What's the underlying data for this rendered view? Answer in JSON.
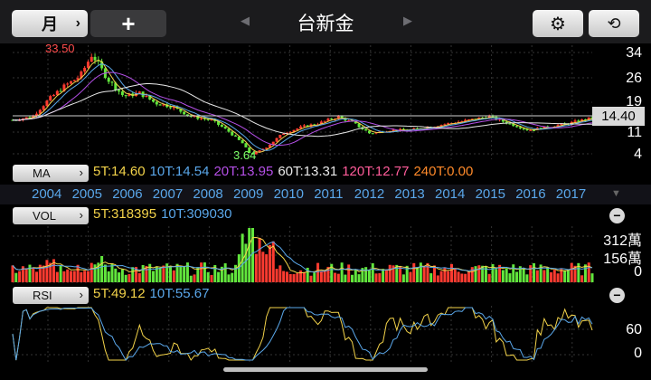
{
  "toolbar": {
    "period_label": "月",
    "period_chevron": "›",
    "add_label": "+",
    "title": "台新金",
    "prev_arrow": "◀",
    "next_arrow": "▶",
    "settings_icon": "⚙",
    "rotate_icon": "⟲"
  },
  "price_axis": {
    "labels": [
      "34",
      "26",
      "19",
      "11",
      "4"
    ]
  },
  "current_price": "14.40",
  "annotations": {
    "high": "33.50",
    "low": "3.64"
  },
  "ma": {
    "button_label": "MA",
    "values": [
      {
        "text": "5T:14.60",
        "color": "#f3d34a"
      },
      {
        "text": "10T:14.54",
        "color": "#5aa7ea"
      },
      {
        "text": "20T:13.95",
        "color": "#b44fe6"
      },
      {
        "text": "60T:13.31",
        "color": "#e9e9e9"
      },
      {
        "text": "120T:12.77",
        "color": "#ff5c9a"
      },
      {
        "text": "240T:0.00",
        "color": "#ff8a2a"
      }
    ]
  },
  "years": [
    "2004",
    "2005",
    "2006",
    "2007",
    "2008",
    "2009",
    "2010",
    "2011",
    "2012",
    "2013",
    "2014",
    "2015",
    "2016",
    "2017"
  ],
  "vol": {
    "button_label": "VOL",
    "values": [
      {
        "text": "5T:318395",
        "color": "#f3d34a"
      },
      {
        "text": "10T:309030",
        "color": "#5aa7ea"
      }
    ],
    "axis": [
      "312萬",
      "156萬",
      "0"
    ]
  },
  "rsi": {
    "button_label": "RSI",
    "values": [
      {
        "text": "5T:49.12",
        "color": "#f3d34a"
      },
      {
        "text": "10T:55.67",
        "color": "#5aa7ea"
      }
    ],
    "axis": [
      "60",
      "0"
    ]
  },
  "chart_data": [
    {
      "type": "candlestick",
      "title": "台新金",
      "x_range": [
        "2003",
        "2017"
      ],
      "y_ticks": [
        34,
        26,
        19,
        11,
        4
      ],
      "ylim": [
        4,
        34
      ],
      "last_price": 14.4,
      "high": {
        "value": 33.5,
        "date": "2005"
      },
      "low": {
        "value": 3.64,
        "date": "2009"
      },
      "series_close": [
        {
          "x": 2003.0,
          "y": 14
        },
        {
          "x": 2003.5,
          "y": 15
        },
        {
          "x": 2003.9,
          "y": 20
        },
        {
          "x": 2004.3,
          "y": 24
        },
        {
          "x": 2004.7,
          "y": 27
        },
        {
          "x": 2005.0,
          "y": 33.5
        },
        {
          "x": 2005.4,
          "y": 26
        },
        {
          "x": 2005.8,
          "y": 21
        },
        {
          "x": 2006.2,
          "y": 22
        },
        {
          "x": 2006.6,
          "y": 19
        },
        {
          "x": 2007.0,
          "y": 18
        },
        {
          "x": 2007.5,
          "y": 15
        },
        {
          "x": 2008.0,
          "y": 14
        },
        {
          "x": 2008.4,
          "y": 11
        },
        {
          "x": 2008.8,
          "y": 7
        },
        {
          "x": 2009.0,
          "y": 3.64
        },
        {
          "x": 2009.4,
          "y": 6
        },
        {
          "x": 2009.8,
          "y": 10
        },
        {
          "x": 2010.3,
          "y": 12
        },
        {
          "x": 2010.7,
          "y": 13
        },
        {
          "x": 2011.2,
          "y": 15
        },
        {
          "x": 2011.6,
          "y": 13
        },
        {
          "x": 2012.0,
          "y": 10
        },
        {
          "x": 2012.5,
          "y": 11
        },
        {
          "x": 2013.0,
          "y": 11
        },
        {
          "x": 2013.5,
          "y": 12
        },
        {
          "x": 2014.0,
          "y": 13
        },
        {
          "x": 2014.5,
          "y": 14
        },
        {
          "x": 2015.0,
          "y": 15
        },
        {
          "x": 2015.5,
          "y": 13
        },
        {
          "x": 2016.0,
          "y": 11
        },
        {
          "x": 2016.5,
          "y": 12
        },
        {
          "x": 2017.0,
          "y": 13
        },
        {
          "x": 2017.5,
          "y": 14.4
        }
      ]
    },
    {
      "type": "bar",
      "title": "VOL",
      "y_ticks": [
        "312萬",
        "156萬",
        "0"
      ],
      "highlight_period": "2009",
      "peak_volume_wan": 312
    },
    {
      "type": "line",
      "title": "RSI",
      "y_ticks": [
        60,
        0
      ],
      "series": [
        {
          "name": "5T",
          "color": "#f3d34a",
          "last": 49.12
        },
        {
          "name": "10T",
          "color": "#5aa7ea",
          "last": 55.67
        }
      ]
    }
  ]
}
